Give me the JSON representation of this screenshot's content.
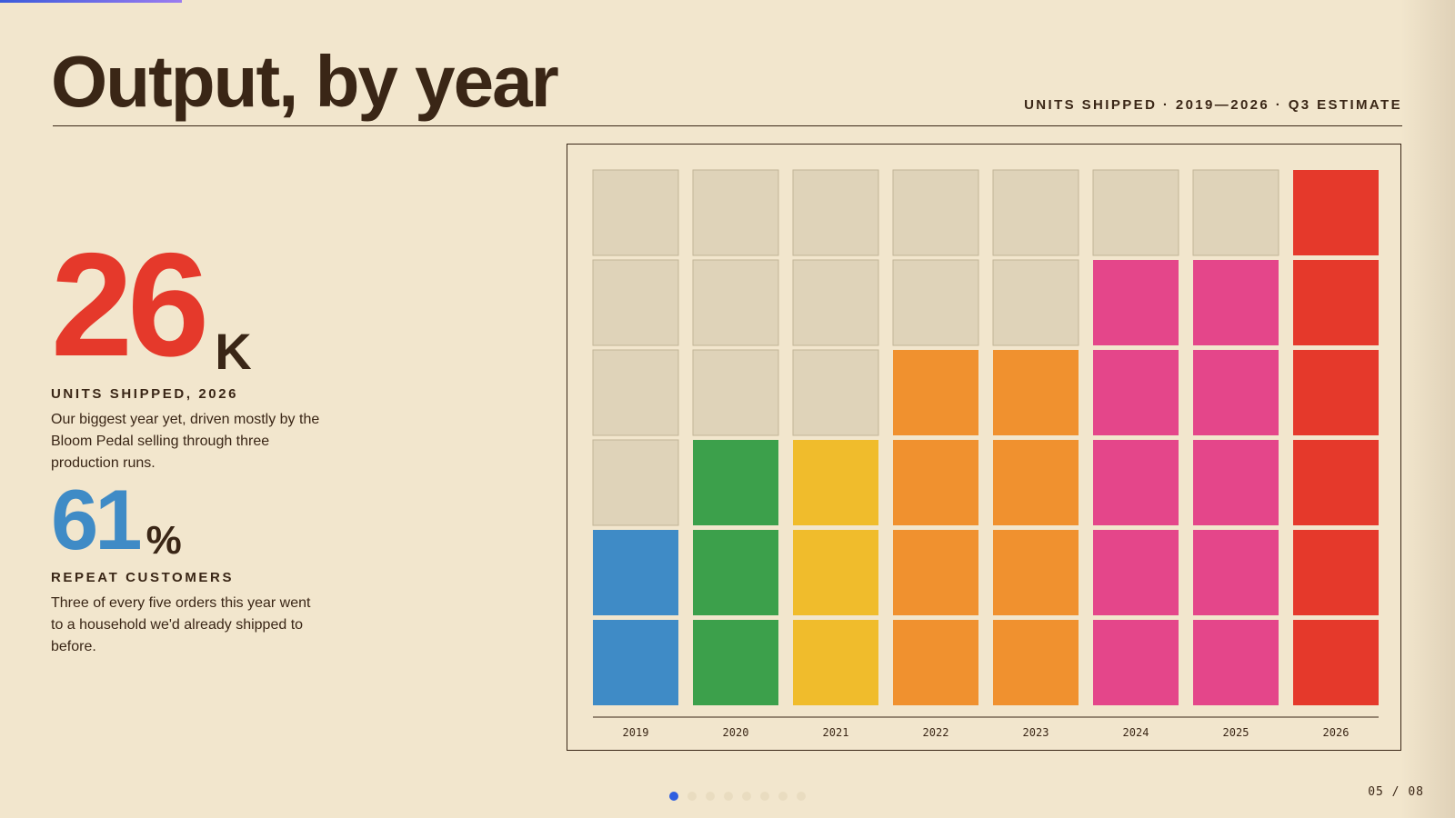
{
  "slide": {
    "title": "Output, by year",
    "subtitle": "UNITS SHIPPED · 2019—2026 · Q3 ESTIMATE",
    "page_indicator": "05 / 08",
    "current_page": 5,
    "total_pages": 8
  },
  "stats": [
    {
      "value": "26",
      "unit": "K",
      "label": "UNITS SHIPPED, 2026",
      "description": "Our biggest year yet, driven mostly by the Bloom Pedal selling through three production runs.",
      "color": "#e5392b"
    },
    {
      "value": "61",
      "unit": "%",
      "label": "REPEAT CUSTOMERS",
      "description": "Three of every five orders this year went to a household we'd already shipped to before.",
      "color": "#3f8bc6"
    }
  ],
  "chart_data": {
    "type": "bar",
    "style": "unit-grid",
    "categories": [
      "2019",
      "2020",
      "2021",
      "2022",
      "2023",
      "2024",
      "2025",
      "2026"
    ],
    "values": [
      2,
      3,
      3,
      4,
      4,
      5,
      5,
      6
    ],
    "max_units": 6,
    "colors": [
      "#3f8bc6",
      "#3ca04b",
      "#f0bc2c",
      "#f0912f",
      "#f0912f",
      "#e4468a",
      "#e4468a",
      "#e5392b"
    ],
    "empty_color": "#dfd3b9",
    "empty_border": "#c1b497",
    "axis_color": "#3a2616"
  }
}
